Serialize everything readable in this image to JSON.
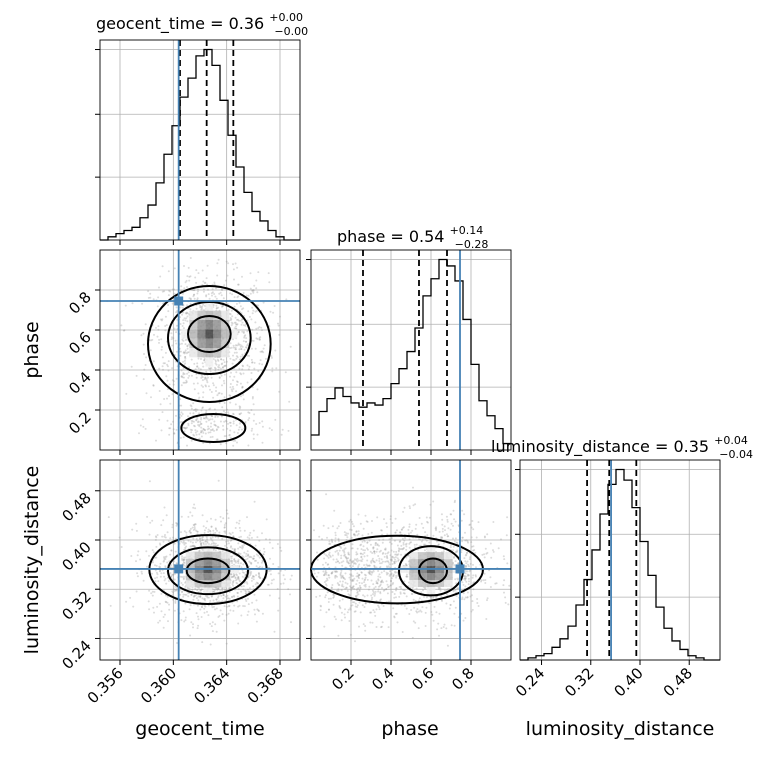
{
  "chart_data": {
    "type": "corner",
    "parameters": [
      "geocent_time",
      "phase",
      "luminosity_distance"
    ],
    "axis_labels": [
      "geocent_time",
      "phase",
      "luminosity_distance"
    ],
    "truths": {
      "geocent_time": 0.3604,
      "phase": 0.745,
      "luminosity_distance": 0.353
    },
    "ranges": {
      "geocent_time": [
        0.3545,
        0.3695
      ],
      "phase": [
        0.0,
        1.0
      ],
      "luminosity_distance": [
        0.205,
        0.53
      ]
    },
    "ticks": {
      "geocent_time": {
        "values": [
          0.356,
          0.36,
          0.364,
          0.368
        ],
        "labels": [
          "0.356",
          "0.360",
          "0.364",
          "0.368"
        ]
      },
      "phase": {
        "values": [
          0.2,
          0.4,
          0.6,
          0.8
        ],
        "labels": [
          "0.2",
          "0.4",
          "0.6",
          "0.8"
        ]
      },
      "luminosity_distance": {
        "values": [
          0.24,
          0.32,
          0.4,
          0.48
        ],
        "labels": [
          "0.24",
          "0.32",
          "0.40",
          "0.48"
        ]
      }
    },
    "titles": [
      {
        "parameter": "geocent_time",
        "prefix": "geocent_time = 0.36",
        "plus": "+0.00",
        "minus": "−0.00"
      },
      {
        "parameter": "phase",
        "prefix": "phase = 0.54",
        "plus": "+0.14",
        "minus": "−0.28"
      },
      {
        "parameter": "luminosity_distance",
        "prefix": "luminosity_distance = 0.35",
        "plus": "+0.04",
        "minus": "−0.04"
      }
    ],
    "quantiles": {
      "geocent_time": [
        0.3605,
        0.3625,
        0.3645
      ],
      "phase": [
        0.26,
        0.54,
        0.68
      ],
      "luminosity_distance": [
        0.314,
        0.35,
        0.394
      ]
    },
    "histograms": {
      "geocent_time": {
        "range": [
          0.3545,
          0.3695
        ],
        "bins": 25,
        "counts": [
          0,
          1,
          2,
          3,
          4,
          7,
          11,
          18,
          27,
          36,
          45,
          51,
          58,
          60,
          55,
          44,
          33,
          23,
          15,
          9,
          6,
          3,
          1,
          0,
          0
        ]
      },
      "phase": {
        "range": [
          0.0,
          1.0
        ],
        "bins": 25,
        "counts": [
          7,
          18,
          24,
          29,
          25,
          22,
          20,
          22,
          21,
          24,
          31,
          38,
          46,
          57,
          72,
          80,
          89,
          86,
          79,
          61,
          40,
          23,
          16,
          10,
          3
        ]
      },
      "luminosity_distance": {
        "range": [
          0.205,
          0.53
        ],
        "bins": 25,
        "counts": [
          0,
          1,
          2,
          3,
          6,
          10,
          16,
          26,
          38,
          52,
          69,
          83,
          90,
          85,
          72,
          56,
          40,
          25,
          15,
          9,
          5,
          2,
          1,
          0,
          0
        ]
      }
    },
    "contour_levels": [
      "39%",
      "86%",
      "99%"
    ],
    "grid": true
  }
}
